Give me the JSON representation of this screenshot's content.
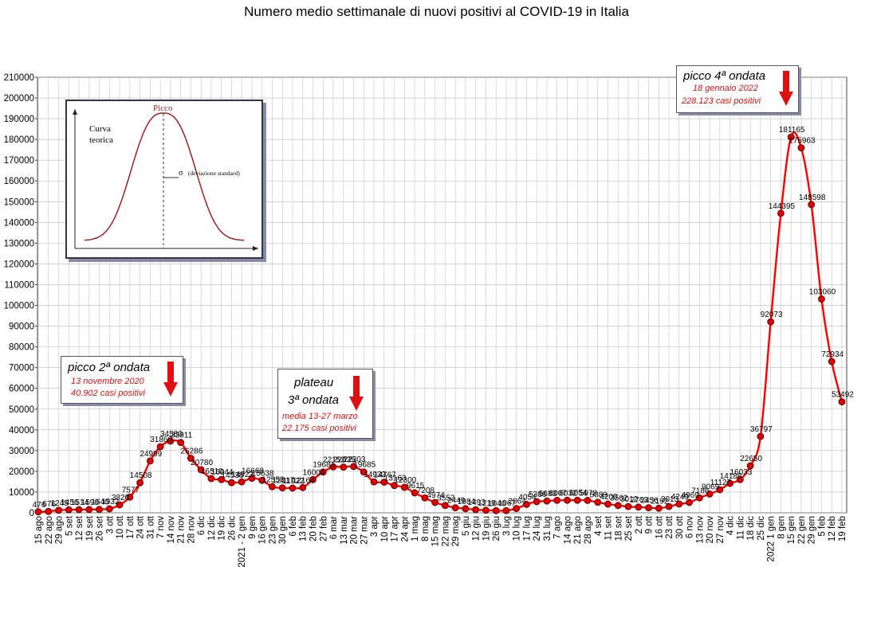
{
  "chart_data": {
    "type": "line",
    "title": "Numero medio settimanale di nuovi positivi al COVID-19 in Italia",
    "xlabel": "",
    "ylabel": "",
    "ylim": [
      0,
      210000
    ],
    "yticks": [
      0,
      10000,
      20000,
      30000,
      40000,
      50000,
      60000,
      70000,
      80000,
      90000,
      100000,
      110000,
      120000,
      130000,
      140000,
      150000,
      160000,
      170000,
      180000,
      190000,
      200000,
      210000
    ],
    "grid": true,
    "line_color": "#ff0000",
    "marker_color": "#e00000",
    "categories": [
      "15 ago",
      "22 ago",
      "29 ago",
      "5 set",
      "12 set",
      "19 set",
      "26 set",
      "3 ott",
      "10 ott",
      "17 ott",
      "24 ott",
      "31 ott",
      "7 nov",
      "14 nov",
      "21 nov",
      "28 nov",
      "6 dic",
      "12 dic",
      "19 dic",
      "26 dic",
      "2021 - 2 gen",
      "9 gen",
      "16 gen",
      "23 gen",
      "30 gen",
      "6 feb",
      "13 feb",
      "20 feb",
      "27 feb",
      "6 mar",
      "13 mar",
      "20 mar",
      "27 mar",
      "3 apr",
      "10 apr",
      "17 apr",
      "24 apr",
      "1 mag",
      "8 mag",
      "15 mag",
      "22 mag",
      "29 mag",
      "5 giu",
      "12 giu",
      "19 giu",
      "26 giu",
      "3 lug",
      "10 lug",
      "17 lug",
      "24 lug",
      "31 lug",
      "7 ago",
      "14 ago",
      "21 ago",
      "28 ago",
      "4 set",
      "11 set",
      "18 set",
      "25 set",
      "2 ott",
      "9 ott",
      "16 ott",
      "23 ott",
      "30 ott",
      "6 nov",
      "13 nov",
      "20 nov",
      "27 nov",
      "4 dic",
      "11 dic",
      "18 dic",
      "25 dic",
      "2022 1 gen",
      "8 gen",
      "15 gen",
      "22 gen",
      "29 gen",
      "5 feb",
      "12 feb",
      "19 feb"
    ],
    "values": [
      476,
      676,
      1245,
      1456,
      1514,
      1590,
      1640,
      1932,
      3820,
      7577,
      14508,
      24999,
      31860,
      34580,
      33911,
      26286,
      20780,
      16510,
      16044,
      14538,
      14923,
      16668,
      15638,
      12553,
      12017,
      11922,
      12164,
      16004,
      19681,
      22152,
      22035,
      22303,
      19685,
      14932,
      14767,
      13163,
      12300,
      9615,
      7208,
      4974,
      3552,
      2449,
      1984,
      1493,
      1219,
      1040,
      1067,
      2064,
      4054,
      5386,
      5683,
      6007,
      6032,
      6054,
      5978,
      5089,
      4200,
      3562,
      3012,
      2763,
      2456,
      2192,
      3013,
      4249,
      4969,
      7186,
      9069,
      11127,
      14186,
      16033,
      22650,
      36797,
      92073,
      144395,
      181165,
      175963,
      148598,
      103060,
      72934,
      53492
    ],
    "data_labels": [
      "476",
      "676",
      "1245",
      "1456",
      "1514",
      "1590",
      "1640",
      "1932",
      "3820",
      "7577",
      "14508",
      "24999",
      "31860",
      "34580",
      "33911",
      "26286",
      "20780",
      "16510",
      "16044",
      "14538",
      "14923",
      "16668",
      "15638",
      "12553",
      "12017",
      "11922",
      "12164",
      "16004",
      "19681",
      "22152",
      "22035",
      "22303",
      "19685",
      "14932",
      "14767",
      "13163",
      "12300",
      "9615",
      "7208",
      "4974",
      "3552",
      "2449",
      "1984",
      "1493",
      "1219",
      "1040",
      "1067",
      "2064",
      "4054",
      "5386",
      "5683",
      "6007",
      "6032",
      "6054",
      "5978",
      "5089",
      "4200",
      "3562",
      "3012",
      "2763",
      "2456",
      "2192",
      "3013",
      "4249",
      "4969",
      "7186",
      "9069",
      "11127",
      "14186",
      "16033",
      "22650",
      "36797",
      "92073",
      "144395",
      "181165",
      "175963",
      "148598",
      "103060",
      "72934",
      "53492"
    ]
  },
  "annotations": {
    "wave2": {
      "head": "picco 2ª ondata",
      "date": "13 novembre 2020",
      "cases": "40.902 casi positivi"
    },
    "wave3": {
      "head1": "plateau",
      "head2": "3ª ondata",
      "date": "media 13-27 marzo",
      "cases": "22.175 casi positivi"
    },
    "wave4": {
      "head": "picco 4ª ondata",
      "date": "18 gennaio 2022",
      "cases": "228.123 casi positivi"
    },
    "inset": {
      "peak": "Picco",
      "curve1": "Curva",
      "curve2": "teorica",
      "sigma": "σ",
      "stddev": "(deviazione standard)"
    }
  },
  "colors": {
    "arrow": "#e01010",
    "shadow": "#8a8aa8",
    "inset_curve": "#a02020"
  }
}
